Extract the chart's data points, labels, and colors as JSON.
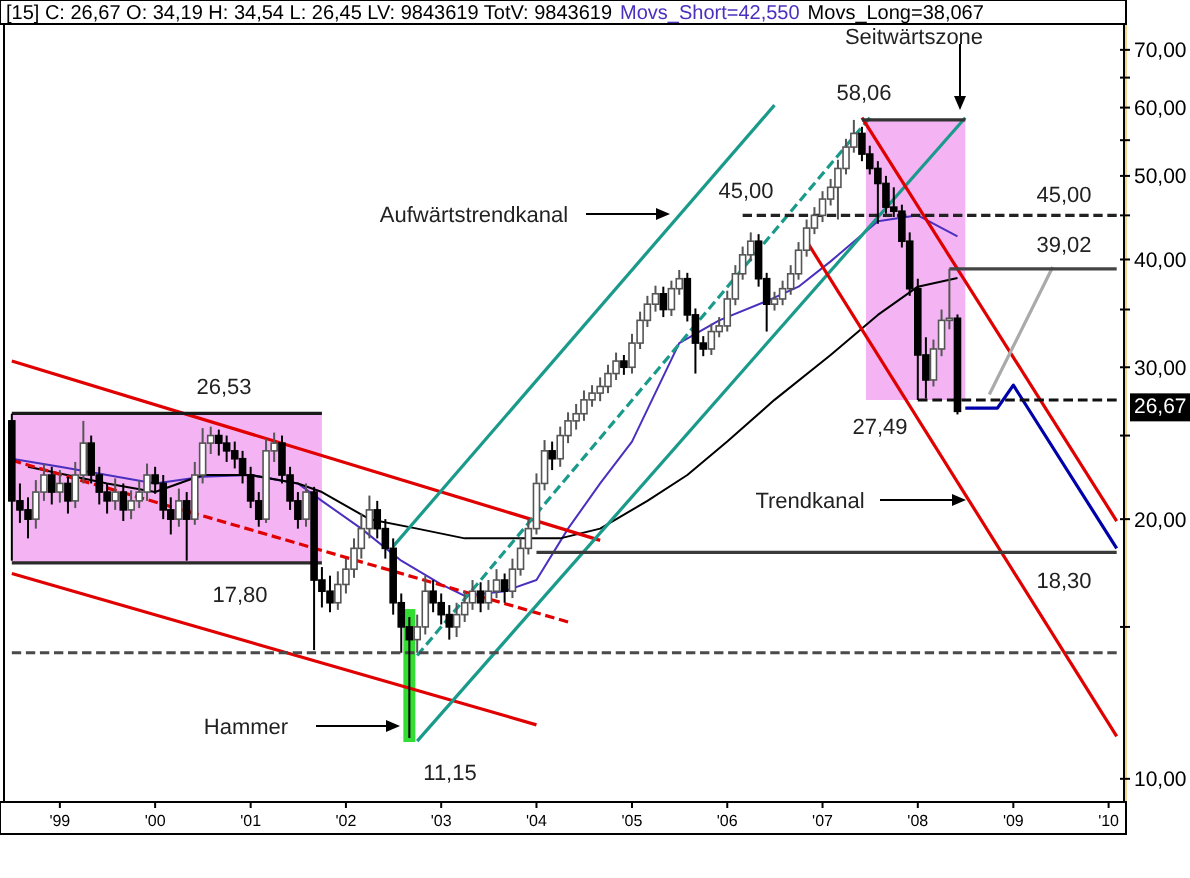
{
  "chart_data": {
    "type": "candlestick",
    "title": "[15] C: 26,67 O: 34,19 H: 34,54 L: 26,45 LV: 9843619 TotV: 9843619",
    "log": true,
    "legend": "top right",
    "xlim": [
      "1998-06",
      "2010-03"
    ],
    "xticks": [
      {
        "value": "1999",
        "label": "'99"
      },
      {
        "value": "2000",
        "label": "'00"
      },
      {
        "value": "2001",
        "label": "'01"
      },
      {
        "value": "2002",
        "label": "'02"
      },
      {
        "value": "2003",
        "label": "'03"
      },
      {
        "value": "2004",
        "label": "'04"
      },
      {
        "value": "2005",
        "label": "'05"
      },
      {
        "value": "2006",
        "label": "'06"
      },
      {
        "value": "2007",
        "label": "'07"
      },
      {
        "value": "2008",
        "label": "'08"
      },
      {
        "value": "2009",
        "label": "'09"
      },
      {
        "value": "2010",
        "label": "'10"
      }
    ],
    "ylim": [
      9.4,
      75
    ],
    "yticks": [
      {
        "value": 10,
        "label": "10,00"
      },
      {
        "value": 15,
        "label": null
      },
      {
        "value": 20,
        "label": "20,00"
      },
      {
        "value": 25,
        "label": null
      },
      {
        "value": 30,
        "label": "30,00"
      },
      {
        "value": 35,
        "label": null
      },
      {
        "value": 40,
        "label": "40,00"
      },
      {
        "value": 45,
        "label": null
      },
      {
        "value": 50,
        "label": "50,00"
      },
      {
        "value": 55,
        "label": null
      },
      {
        "value": 60,
        "label": "60,00"
      },
      {
        "value": 65,
        "label": null
      },
      {
        "value": 70,
        "label": "70,00"
      }
    ],
    "x": [
      "1998-07",
      "1998-08",
      "1998-09",
      "1998-10",
      "1998-11",
      "1998-12",
      "1999-01",
      "1999-02",
      "1999-03",
      "1999-04",
      "1999-05",
      "1999-06",
      "1999-07",
      "1999-08",
      "1999-09",
      "1999-10",
      "1999-11",
      "1999-12",
      "2000-01",
      "2000-02",
      "2000-03",
      "2000-04",
      "2000-05",
      "2000-06",
      "2000-07",
      "2000-08",
      "2000-09",
      "2000-10",
      "2000-11",
      "2000-12",
      "2001-01",
      "2001-02",
      "2001-03",
      "2001-04",
      "2001-05",
      "2001-06",
      "2001-07",
      "2001-08",
      "2001-09",
      "2001-10",
      "2001-11",
      "2001-12",
      "2002-01",
      "2002-02",
      "2002-03",
      "2002-04",
      "2002-05",
      "2002-06",
      "2002-07",
      "2002-08",
      "2002-09",
      "2002-10",
      "2002-11",
      "2002-12",
      "2003-01",
      "2003-02",
      "2003-03",
      "2003-04",
      "2003-05",
      "2003-06",
      "2003-07",
      "2003-08",
      "2003-09",
      "2003-10",
      "2003-11",
      "2003-12",
      "2004-01",
      "2004-02",
      "2004-03",
      "2004-04",
      "2004-05",
      "2004-06",
      "2004-07",
      "2004-08",
      "2004-09",
      "2004-10",
      "2004-11",
      "2004-12",
      "2005-01",
      "2005-02",
      "2005-03",
      "2005-04",
      "2005-05",
      "2005-06",
      "2005-07",
      "2005-08",
      "2005-09",
      "2005-10",
      "2005-11",
      "2005-12",
      "2006-01",
      "2006-02",
      "2006-03",
      "2006-04",
      "2006-05",
      "2006-06",
      "2006-07",
      "2006-08",
      "2006-09",
      "2006-10",
      "2006-11",
      "2006-12",
      "2007-01",
      "2007-02",
      "2007-03",
      "2007-04",
      "2007-05",
      "2007-06",
      "2007-07",
      "2007-08",
      "2007-09",
      "2007-10",
      "2007-11",
      "2007-12",
      "2008-01",
      "2008-02",
      "2008-03",
      "2008-04",
      "2008-05",
      "2008-06"
    ],
    "ohlc": [
      [
        26.0,
        26.5,
        17.9,
        21.0
      ],
      [
        21.0,
        22.0,
        19.8,
        20.5
      ],
      [
        20.5,
        21.2,
        19.0,
        20.0
      ],
      [
        20.0,
        22.2,
        19.5,
        21.5
      ],
      [
        21.5,
        23.2,
        21.0,
        22.5
      ],
      [
        22.5,
        23.0,
        20.8,
        21.5
      ],
      [
        21.5,
        22.8,
        20.9,
        22.0
      ],
      [
        22.0,
        22.4,
        20.3,
        21.0
      ],
      [
        21.0,
        23.3,
        20.6,
        22.5
      ],
      [
        22.5,
        26.0,
        22.0,
        24.5
      ],
      [
        24.5,
        25.0,
        22.0,
        22.5
      ],
      [
        22.5,
        23.0,
        20.8,
        21.5
      ],
      [
        21.5,
        22.0,
        20.3,
        21.0
      ],
      [
        21.0,
        22.3,
        20.5,
        21.5
      ],
      [
        21.5,
        22.0,
        19.9,
        20.5
      ],
      [
        20.5,
        21.6,
        20.0,
        21.0
      ],
      [
        21.0,
        22.2,
        20.6,
        21.5
      ],
      [
        21.5,
        23.2,
        21.0,
        22.5
      ],
      [
        22.5,
        23.0,
        21.4,
        22.0
      ],
      [
        22.0,
        22.5,
        20.0,
        20.5
      ],
      [
        20.5,
        21.2,
        19.2,
        20.0
      ],
      [
        20.0,
        21.7,
        19.6,
        21.0
      ],
      [
        21.0,
        21.5,
        17.9,
        20.0
      ],
      [
        20.0,
        23.3,
        19.7,
        22.5
      ],
      [
        22.5,
        25.5,
        22.0,
        24.5
      ],
      [
        24.5,
        25.6,
        23.8,
        25.0
      ],
      [
        25.0,
        25.4,
        23.7,
        24.5
      ],
      [
        24.5,
        25.0,
        23.3,
        24.0
      ],
      [
        24.0,
        24.6,
        22.9,
        23.5
      ],
      [
        23.5,
        24.0,
        22.0,
        22.5
      ],
      [
        22.5,
        23.0,
        20.6,
        21.0
      ],
      [
        21.0,
        21.5,
        19.6,
        20.0
      ],
      [
        20.0,
        24.8,
        19.8,
        24.0
      ],
      [
        24.0,
        25.2,
        23.3,
        24.5
      ],
      [
        24.5,
        25.0,
        22.0,
        22.5
      ],
      [
        22.5,
        23.0,
        20.5,
        21.0
      ],
      [
        21.0,
        21.5,
        19.5,
        20.0
      ],
      [
        20.0,
        22.0,
        19.6,
        21.5
      ],
      [
        21.5,
        21.8,
        14.1,
        17.0
      ],
      [
        17.0,
        17.6,
        15.8,
        16.5
      ],
      [
        16.5,
        17.2,
        15.6,
        16.0
      ],
      [
        16.0,
        17.4,
        15.7,
        16.8
      ],
      [
        16.8,
        18.0,
        16.4,
        17.5
      ],
      [
        17.5,
        19.0,
        17.1,
        18.5
      ],
      [
        18.5,
        20.3,
        18.0,
        19.5
      ],
      [
        19.5,
        21.3,
        19.0,
        20.5
      ],
      [
        20.5,
        21.0,
        19.0,
        19.5
      ],
      [
        19.5,
        20.0,
        18.0,
        18.5
      ],
      [
        18.5,
        19.0,
        15.5,
        16.0
      ],
      [
        16.0,
        16.4,
        14.0,
        15.0
      ],
      [
        15.0,
        15.4,
        11.15,
        14.5
      ],
      [
        14.5,
        15.5,
        14.0,
        15.0
      ],
      [
        15.0,
        17.2,
        14.7,
        16.5
      ],
      [
        16.5,
        17.0,
        15.6,
        16.0
      ],
      [
        16.0,
        16.4,
        15.1,
        15.5
      ],
      [
        15.5,
        15.9,
        14.5,
        15.0
      ],
      [
        15.0,
        16.0,
        14.6,
        15.5
      ],
      [
        15.5,
        16.5,
        15.2,
        16.0
      ],
      [
        16.0,
        17.0,
        15.7,
        16.5
      ],
      [
        16.5,
        16.9,
        15.6,
        16.0
      ],
      [
        16.0,
        17.0,
        15.7,
        16.5
      ],
      [
        16.5,
        17.5,
        16.2,
        17.0
      ],
      [
        17.0,
        17.3,
        16.0,
        16.5
      ],
      [
        16.5,
        18.0,
        16.2,
        17.5
      ],
      [
        17.5,
        19.0,
        17.2,
        18.5
      ],
      [
        18.5,
        20.0,
        18.2,
        19.5
      ],
      [
        19.5,
        22.6,
        19.2,
        22.0
      ],
      [
        22.0,
        24.7,
        21.6,
        24.0
      ],
      [
        24.0,
        24.6,
        22.8,
        23.5
      ],
      [
        23.5,
        25.6,
        23.0,
        25.0
      ],
      [
        25.0,
        26.6,
        24.5,
        26.0
      ],
      [
        26.0,
        27.2,
        25.4,
        26.5
      ],
      [
        26.5,
        28.2,
        26.0,
        27.5
      ],
      [
        27.5,
        28.6,
        27.0,
        28.0
      ],
      [
        28.0,
        29.2,
        27.4,
        28.5
      ],
      [
        28.5,
        30.2,
        28.0,
        29.5
      ],
      [
        29.5,
        31.2,
        29.0,
        30.5
      ],
      [
        30.5,
        31.0,
        29.4,
        30.0
      ],
      [
        30.0,
        32.8,
        29.5,
        32.0
      ],
      [
        32.0,
        34.8,
        31.5,
        34.0
      ],
      [
        34.0,
        36.3,
        33.4,
        35.5
      ],
      [
        35.5,
        37.3,
        34.8,
        36.5
      ],
      [
        36.5,
        37.2,
        34.3,
        35.0
      ],
      [
        35.0,
        37.8,
        34.4,
        37.0
      ],
      [
        37.0,
        38.9,
        36.4,
        38.0
      ],
      [
        38.0,
        38.6,
        33.9,
        34.5
      ],
      [
        34.5,
        35.1,
        29.5,
        32.0
      ],
      [
        32.0,
        32.6,
        30.9,
        31.5
      ],
      [
        31.5,
        33.7,
        31.0,
        33.0
      ],
      [
        33.0,
        34.3,
        32.5,
        33.5
      ],
      [
        33.5,
        36.8,
        33.0,
        36.0
      ],
      [
        36.0,
        39.4,
        35.4,
        38.5
      ],
      [
        38.5,
        41.4,
        37.9,
        40.5
      ],
      [
        40.5,
        43.0,
        39.8,
        42.0
      ],
      [
        42.0,
        42.8,
        37.2,
        38.0
      ],
      [
        38.0,
        38.6,
        33.0,
        35.5
      ],
      [
        35.5,
        36.7,
        34.9,
        36.0
      ],
      [
        36.0,
        37.8,
        35.4,
        37.0
      ],
      [
        37.0,
        39.4,
        36.4,
        38.5
      ],
      [
        38.5,
        41.9,
        37.9,
        41.0
      ],
      [
        41.0,
        44.5,
        40.3,
        43.5
      ],
      [
        43.5,
        46.0,
        42.8,
        45.0
      ],
      [
        45.0,
        48.0,
        44.2,
        47.0
      ],
      [
        47.0,
        49.6,
        46.2,
        48.5
      ],
      [
        48.5,
        52.2,
        44.5,
        51.0
      ],
      [
        51.0,
        55.2,
        50.2,
        54.0
      ],
      [
        54.0,
        58.06,
        53.2,
        56.0
      ],
      [
        56.0,
        57.0,
        52.0,
        53.0
      ],
      [
        53.0,
        54.2,
        50.2,
        51.0
      ],
      [
        51.0,
        52.0,
        44.0,
        49.0
      ],
      [
        49.0,
        50.0,
        45.2,
        46.0
      ],
      [
        46.0,
        48.5,
        44.8,
        45.5
      ],
      [
        45.5,
        46.3,
        41.3,
        42.0
      ],
      [
        42.0,
        43.0,
        36.3,
        37.0
      ],
      [
        37.0,
        38.0,
        27.49,
        31.0
      ],
      [
        31.0,
        32.5,
        27.6,
        29.0
      ],
      [
        29.0,
        32.3,
        28.5,
        31.5
      ],
      [
        31.5,
        35.0,
        30.9,
        34.0
      ],
      [
        34.0,
        39.02,
        33.2,
        34.19
      ],
      [
        34.19,
        34.54,
        26.45,
        26.67
      ]
    ],
    "series": [
      {
        "type": "line",
        "name": "Movs_Short=42,550",
        "color": "#4b2fbf",
        "x": [
          "1998-07",
          "1999-01",
          "1999-07",
          "2000-01",
          "2000-07",
          "2001-01",
          "2001-07",
          "2001-10",
          "2002-03",
          "2002-08",
          "2003-01",
          "2003-04",
          "2003-09",
          "2004-01",
          "2004-05",
          "2004-09",
          "2005-01",
          "2005-07",
          "2005-12",
          "2006-06",
          "2006-10",
          "2007-02",
          "2007-08",
          "2008-01",
          "2008-06"
        ],
        "values": [
          23.5,
          23,
          22.5,
          22,
          22.4,
          22.5,
          22,
          21,
          19.5,
          17.9,
          16.8,
          16.3,
          16.5,
          17,
          19.5,
          22,
          24.6,
          32,
          34,
          35.8,
          37.2,
          39.8,
          44.3,
          45,
          42.55
        ]
      },
      {
        "type": "line",
        "name": "Movs_Long=38,067",
        "color": "#000000",
        "x": [
          "1998-09",
          "1999-07",
          "2000-01",
          "2000-07",
          "2001-01",
          "2001-07",
          "2001-10",
          "2002-04",
          "2002-10",
          "2003-04",
          "2003-10",
          "2004-04",
          "2004-09",
          "2005-03",
          "2005-08",
          "2006-01",
          "2006-07",
          "2007-02",
          "2007-08",
          "2008-01",
          "2008-06"
        ],
        "values": [
          23,
          22,
          21.5,
          22.5,
          22.5,
          22,
          21.5,
          20,
          19.5,
          19,
          19,
          19,
          19.5,
          21,
          22.5,
          24.6,
          27.5,
          31,
          34.5,
          37.2,
          38.067
        ]
      },
      {
        "type": "line",
        "color": "#e00000",
        "x": [
          "1998-07",
          "2004-09"
        ],
        "values": [
          30.5,
          18.9
        ]
      },
      {
        "type": "line",
        "color": "#e00000",
        "line_style": "dashed",
        "x": [
          "1998-07",
          "2004-05"
        ],
        "values": [
          23.4,
          15.2
        ]
      },
      {
        "type": "line",
        "color": "#e00000",
        "x": [
          "1998-07",
          "2004-01"
        ],
        "values": [
          17.3,
          11.55
        ]
      },
      {
        "type": "line",
        "color": "#1a9a8a",
        "x": [
          "2002-07",
          "2006-07"
        ],
        "values": [
          18.6,
          60.4
        ]
      },
      {
        "type": "line",
        "color": "#1a9a8a",
        "x": [
          "2002-10",
          "2008-07"
        ],
        "values": [
          11.06,
          58.4
        ]
      },
      {
        "type": "line",
        "color": "#1a9a8a",
        "line_style": "dashed",
        "x": [
          "2002-10",
          "2007-07"
        ],
        "values": [
          13.9,
          58.4
        ]
      },
      {
        "type": "line",
        "color": "#e00000",
        "x": [
          "2007-06",
          "2010-02"
        ],
        "values": [
          58.4,
          19.9
        ]
      },
      {
        "type": "line",
        "color": "#e00000",
        "x": [
          "2006-11",
          "2010-02"
        ],
        "values": [
          42.0,
          11.2
        ]
      },
      {
        "type": "line",
        "color": "#0000aa",
        "x": [
          "2008-07",
          "2008-11",
          "2009-01",
          "2010-02"
        ],
        "values": [
          26.9,
          26.9,
          28.6,
          18.5
        ]
      },
      {
        "type": "line",
        "color": "#aaaaaa",
        "x": [
          "2008-10",
          "2009-06"
        ],
        "values": [
          27.9,
          39.2
        ]
      },
      {
        "type": "line",
        "color": "#1a1a1a",
        "x": [
          "1998-07",
          "2001-10"
        ],
        "values": [
          26.53,
          26.53
        ]
      },
      {
        "type": "line",
        "color": "#2a2a2a",
        "x": [
          "1998-07",
          "2001-10"
        ],
        "values": [
          17.8,
          17.8
        ]
      },
      {
        "type": "line",
        "color": "#3a3a3a",
        "x": [
          "2004-01",
          "2010-02"
        ],
        "values": [
          18.3,
          18.3
        ]
      },
      {
        "type": "line",
        "color": "#4a4a4a",
        "line_style": "dashed",
        "x": [
          "1998-07",
          "2010-02"
        ],
        "values": [
          14.0,
          14.0
        ]
      },
      {
        "type": "line",
        "color": "#222222",
        "line_style": "dashed",
        "x": [
          "2006-03",
          "2010-02"
        ],
        "values": [
          45.0,
          45.0
        ]
      },
      {
        "type": "line",
        "color": "#444444",
        "x": [
          "2008-05",
          "2010-02"
        ],
        "values": [
          39.02,
          39.02
        ]
      },
      {
        "type": "line",
        "color": "#111111",
        "line_style": "dashed",
        "x": [
          "2008-01",
          "2010-02"
        ],
        "values": [
          27.49,
          27.49
        ]
      },
      {
        "type": "line",
        "color": "#333333",
        "x": [
          "2007-06",
          "2008-07"
        ],
        "values": [
          58.06,
          58.06
        ]
      }
    ],
    "annotations": [
      "Seitwärtszone",
      "58,06",
      "Aufwärtstrendkanal",
      "45,00",
      "45,00",
      "39,02",
      "27,49",
      "26,53",
      "17,80",
      "18,30",
      "11,15",
      "Hammer",
      "Trendkanal",
      "26,67"
    ]
  }
}
